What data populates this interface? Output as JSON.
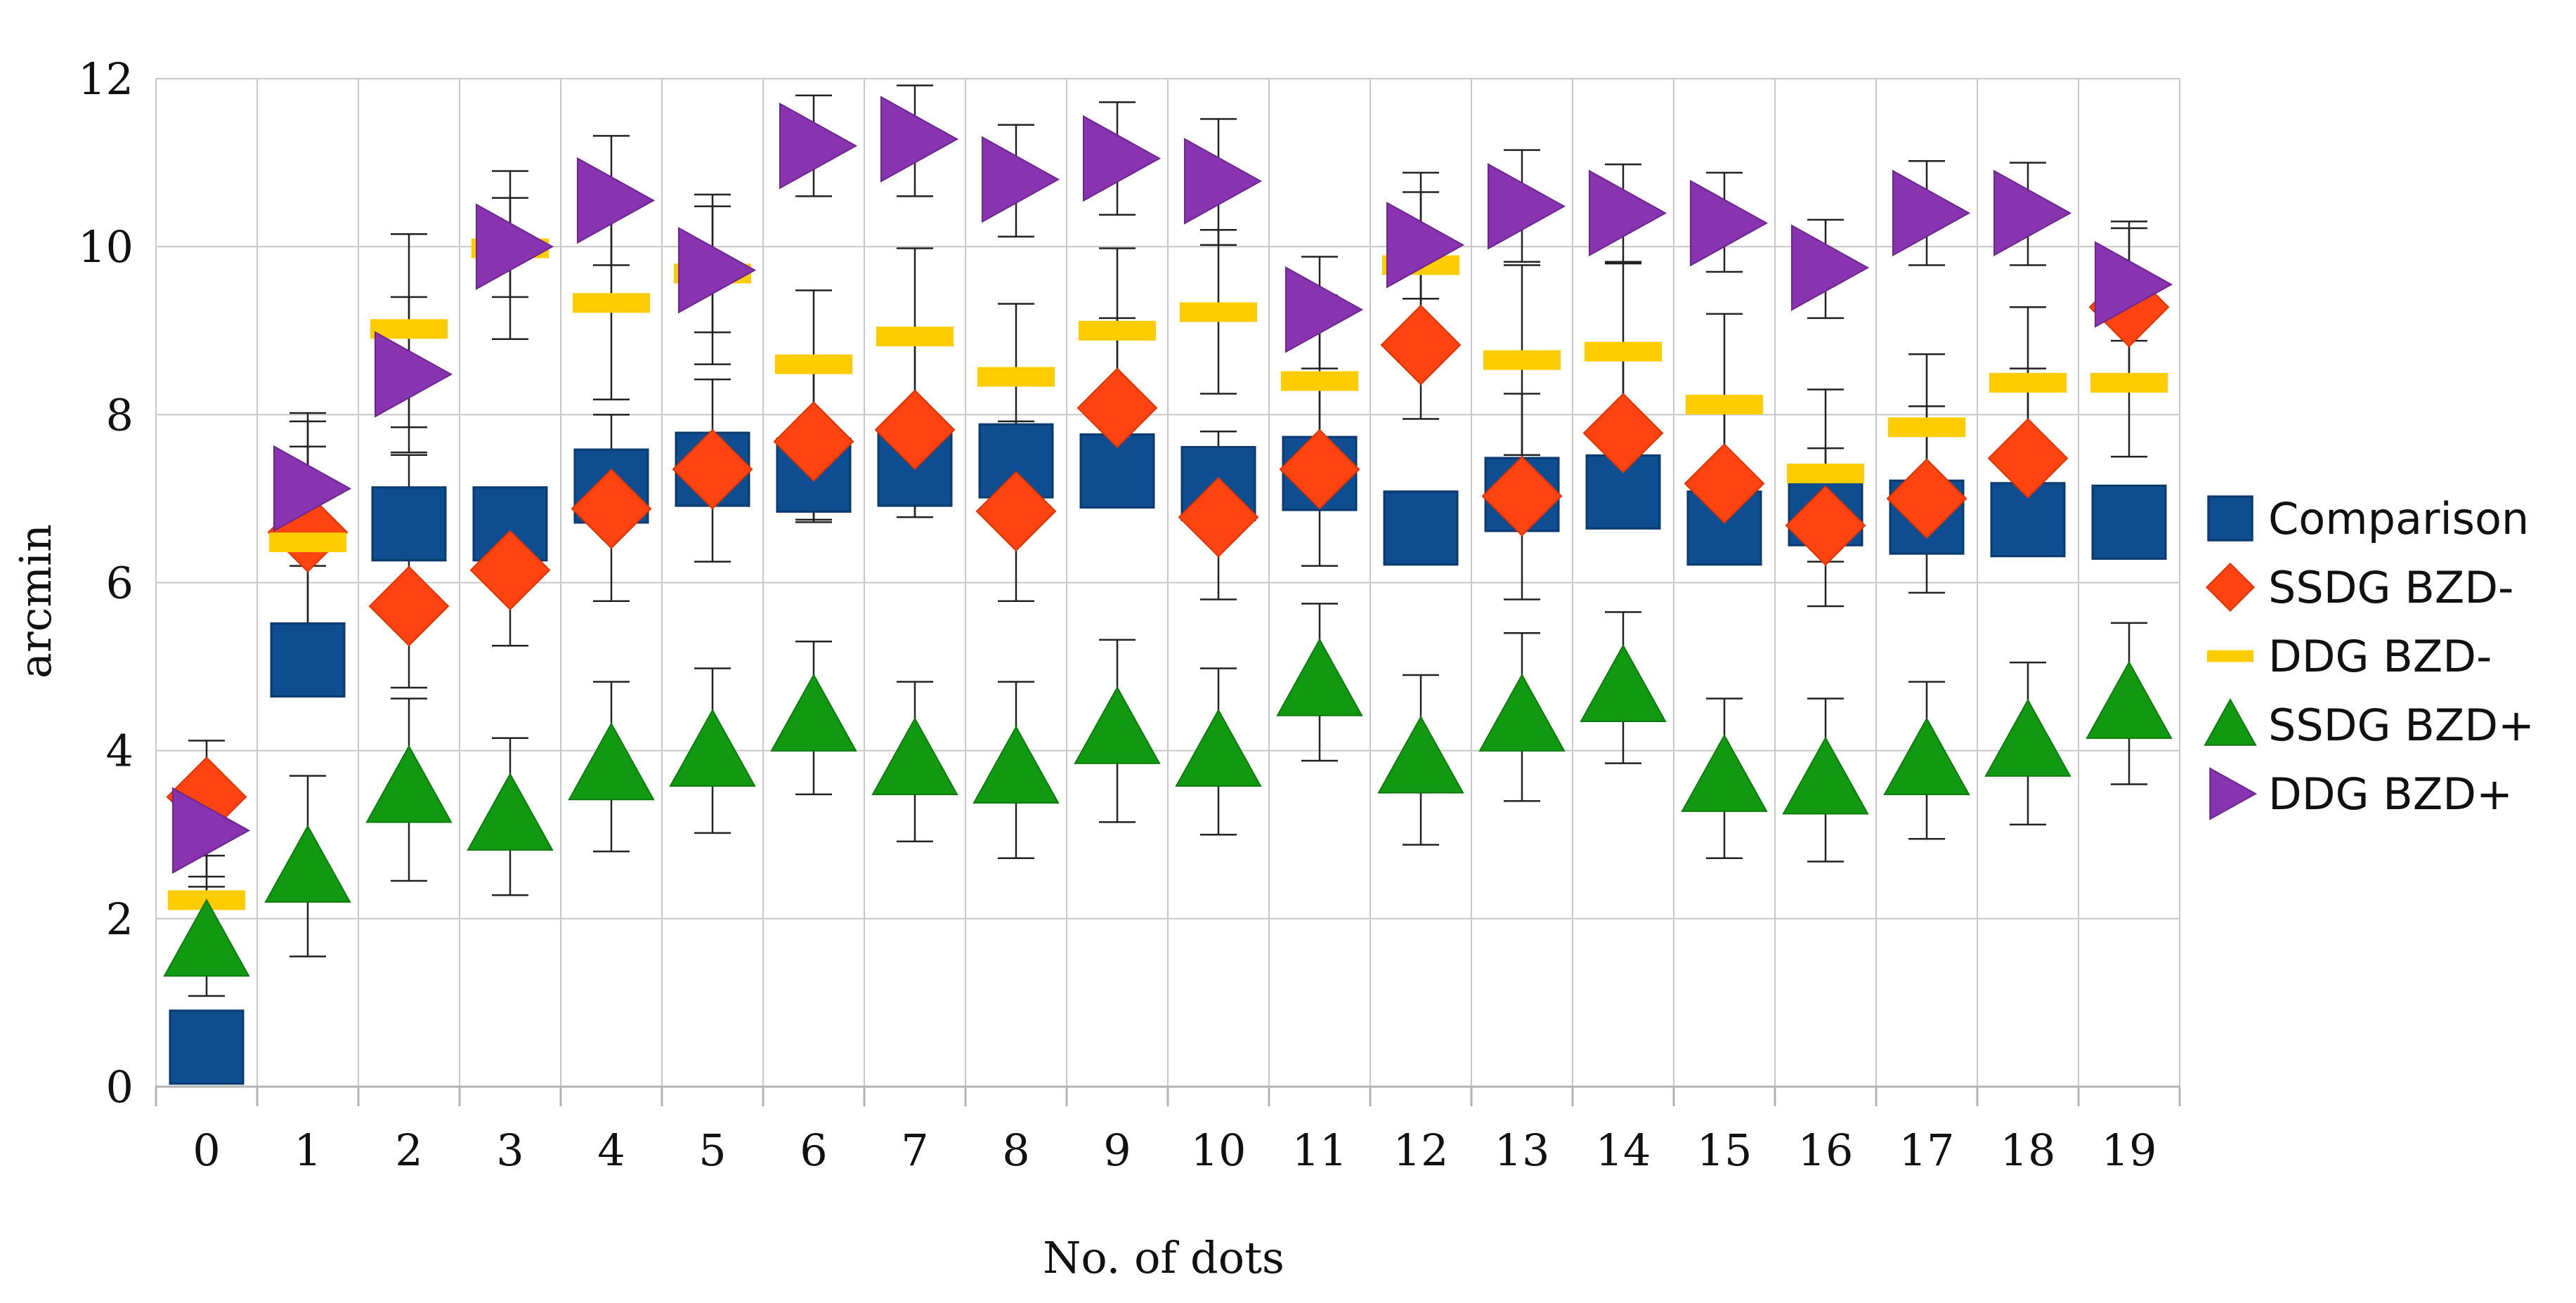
{
  "chart_data": {
    "type": "scatter",
    "xlabel": "No. of dots",
    "ylabel": "arcmin",
    "x": [
      0,
      1,
      2,
      3,
      4,
      5,
      6,
      7,
      8,
      9,
      10,
      11,
      12,
      13,
      14,
      15,
      16,
      17,
      18,
      19
    ],
    "x_ticks": [
      "0",
      "1",
      "2",
      "3",
      "4",
      "5",
      "6",
      "7",
      "8",
      "9",
      "10",
      "11",
      "12",
      "13",
      "14",
      "15",
      "16",
      "17",
      "18",
      "19"
    ],
    "ylim": [
      0,
      12
    ],
    "y_ticks": [
      "0",
      "2",
      "4",
      "6",
      "8",
      "10",
      "12"
    ],
    "grid": true,
    "legend_position": "right",
    "series": [
      {
        "name": "Comparison",
        "marker": "square",
        "color": "#0e4d8f",
        "values": [
          0.47,
          5.08,
          6.7,
          6.7,
          7.15,
          7.35,
          7.28,
          7.35,
          7.45,
          7.33,
          7.18,
          7.3,
          6.65,
          7.05,
          7.08,
          6.65,
          6.88,
          6.78,
          6.75,
          6.72
        ],
        "err_low": [
          0.42,
          4.75,
          6.4,
          6.4,
          6.8,
          7.05,
          6.72,
          6.78,
          7.15,
          7.0,
          6.85,
          6.92,
          6.35,
          6.75,
          6.78,
          6.25,
          6.45,
          6.5,
          6.4,
          6.45
        ],
        "err_high": [
          0.52,
          5.4,
          7.0,
          7.05,
          7.5,
          7.62,
          7.75,
          7.92,
          7.75,
          7.66,
          7.5,
          7.68,
          6.95,
          7.32,
          7.38,
          7.05,
          7.3,
          7.08,
          7.06,
          7.0
        ]
      },
      {
        "name": "SSDG BZD-",
        "marker": "diamond",
        "color": "#ff4411",
        "values": [
          3.45,
          6.6,
          5.72,
          6.15,
          6.88,
          7.35,
          7.68,
          7.82,
          6.85,
          8.08,
          6.78,
          7.35,
          8.83,
          7.03,
          7.78,
          7.18,
          6.68,
          7.0,
          7.48,
          9.28
        ],
        "err_low": [
          2.75,
          5.2,
          4.75,
          5.25,
          5.78,
          6.25,
          6.75,
          6.78,
          5.78,
          7.0,
          5.8,
          6.2,
          7.95,
          5.8,
          6.75,
          6.3,
          5.72,
          5.88,
          6.35,
          8.28
        ],
        "err_high": [
          4.12,
          8.02,
          7.52,
          7.05,
          8.0,
          8.42,
          8.6,
          8.85,
          7.92,
          9.15,
          7.8,
          8.5,
          9.7,
          8.25,
          8.8,
          8.1,
          7.6,
          8.1,
          8.55,
          10.3
        ]
      },
      {
        "name": "DDG BZD-",
        "marker": "dash",
        "color": "#ffcc00",
        "values": [
          2.22,
          6.48,
          9.02,
          9.98,
          9.33,
          9.68,
          8.6,
          8.93,
          8.45,
          9.0,
          9.22,
          8.4,
          9.78,
          8.65,
          8.75,
          8.12,
          7.3,
          7.85,
          8.38,
          8.38
        ],
        "err_low": [
          1.45,
          4.95,
          7.85,
          8.9,
          8.18,
          8.6,
          7.55,
          7.85,
          7.4,
          7.82,
          8.25,
          7.35,
          8.7,
          7.52,
          7.45,
          7.02,
          6.25,
          6.8,
          7.35,
          7.5
        ],
        "err_high": [
          2.95,
          7.92,
          10.15,
          10.9,
          10.42,
          10.62,
          9.48,
          9.98,
          9.32,
          9.98,
          10.2,
          9.42,
          10.88,
          9.78,
          9.82,
          9.2,
          8.3,
          8.72,
          9.28,
          9.25
        ]
      },
      {
        "name": "SSDG BZD+",
        "marker": "triangle-up",
        "color": "#119a11",
        "values": [
          1.72,
          2.6,
          3.55,
          3.22,
          3.82,
          3.98,
          4.4,
          3.88,
          3.78,
          4.25,
          3.98,
          4.82,
          3.9,
          4.4,
          4.75,
          3.68,
          3.65,
          3.88,
          4.1,
          4.55
        ],
        "err_low": [
          1.08,
          1.55,
          2.45,
          2.28,
          2.8,
          3.02,
          3.48,
          2.92,
          2.72,
          3.15,
          3.0,
          3.88,
          2.88,
          3.4,
          3.85,
          2.72,
          2.68,
          2.95,
          3.12,
          3.6
        ],
        "err_high": [
          2.38,
          3.7,
          4.62,
          4.15,
          4.82,
          4.98,
          5.3,
          4.82,
          4.82,
          5.32,
          4.98,
          5.75,
          4.9,
          5.4,
          5.65,
          4.62,
          4.62,
          4.82,
          5.05,
          5.52
        ]
      },
      {
        "name": "DDG BZD+",
        "marker": "triangle-right",
        "color": "#8833b0",
        "values": [
          3.05,
          7.12,
          8.48,
          10.0,
          10.55,
          9.72,
          11.2,
          11.28,
          10.8,
          11.05,
          10.78,
          9.25,
          10.02,
          10.48,
          10.4,
          10.28,
          9.75,
          10.4,
          10.4,
          9.55
        ],
        "err_low": [
          2.5,
          6.2,
          7.55,
          9.4,
          9.78,
          8.98,
          10.6,
          10.6,
          10.12,
          10.38,
          10.02,
          8.55,
          9.38,
          9.82,
          9.8,
          9.7,
          9.15,
          9.78,
          9.78,
          8.88
        ],
        "err_high": [
          3.62,
          7.62,
          9.4,
          10.58,
          11.32,
          10.48,
          11.8,
          11.92,
          11.45,
          11.72,
          11.52,
          9.88,
          10.65,
          11.15,
          10.98,
          10.88,
          10.32,
          11.02,
          11.0,
          10.22
        ]
      }
    ]
  }
}
